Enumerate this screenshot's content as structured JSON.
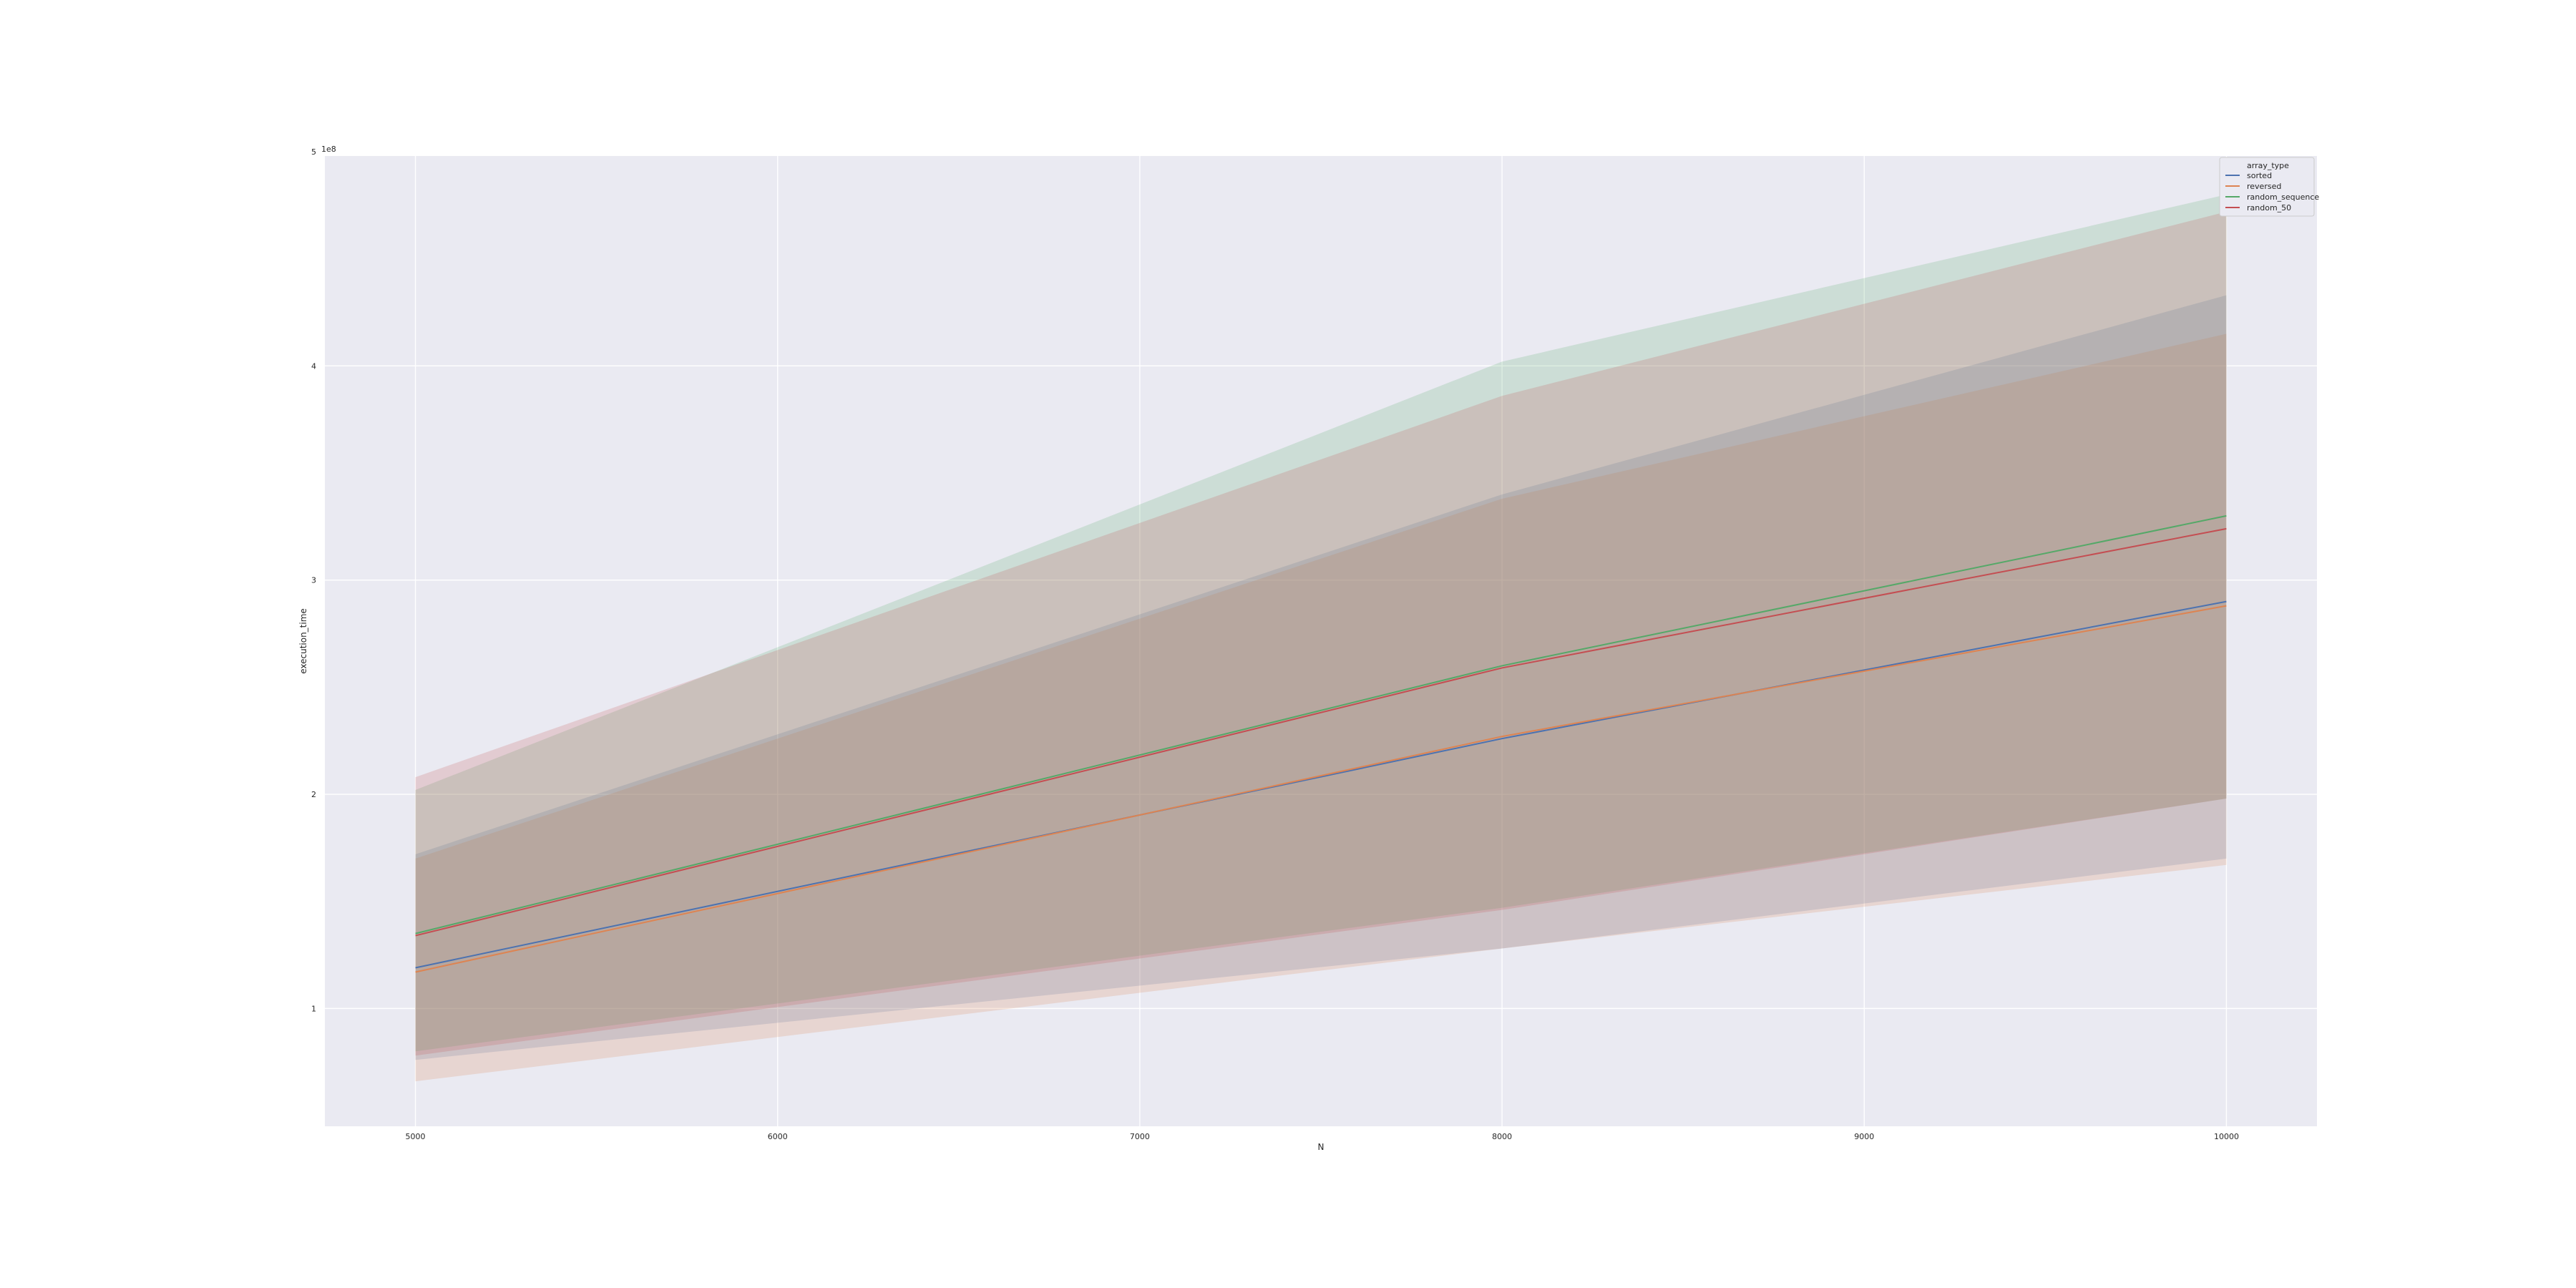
{
  "chart_data": {
    "type": "line",
    "title": "",
    "xlabel": "N",
    "ylabel": "execution_time",
    "y_scale_label": "1e8",
    "x_ticks": [
      5000,
      6000,
      7000,
      8000,
      9000,
      10000
    ],
    "y_ticks": [
      1,
      2,
      3,
      4,
      5
    ],
    "xlim": [
      4750,
      10250
    ],
    "ylim": [
      0.45,
      4.98
    ],
    "grid": true,
    "legend": {
      "title": "array_type",
      "placement": "top-right"
    },
    "x": [
      5000,
      8000,
      10000
    ],
    "series": [
      {
        "name": "sorted",
        "color": "#4c72b0",
        "values": [
          1.19,
          2.26,
          2.9
        ],
        "ci_low": [
          0.76,
          1.28,
          1.7
        ],
        "ci_high": [
          1.72,
          3.4,
          4.33
        ]
      },
      {
        "name": "reversed",
        "color": "#dd8452",
        "values": [
          1.17,
          2.27,
          2.88
        ],
        "ci_low": [
          0.66,
          1.28,
          1.67
        ],
        "ci_high": [
          1.7,
          3.38,
          4.15
        ]
      },
      {
        "name": "random_sequence",
        "color": "#55a868",
        "values": [
          1.35,
          2.6,
          3.3
        ],
        "ci_low": [
          0.8,
          1.47,
          1.98
        ],
        "ci_high": [
          2.02,
          4.02,
          4.8
        ]
      },
      {
        "name": "random_50",
        "color": "#c44e52",
        "values": [
          1.34,
          2.59,
          3.24
        ],
        "ci_low": [
          0.78,
          1.46,
          1.98
        ],
        "ci_high": [
          2.08,
          3.86,
          4.72
        ]
      }
    ]
  }
}
